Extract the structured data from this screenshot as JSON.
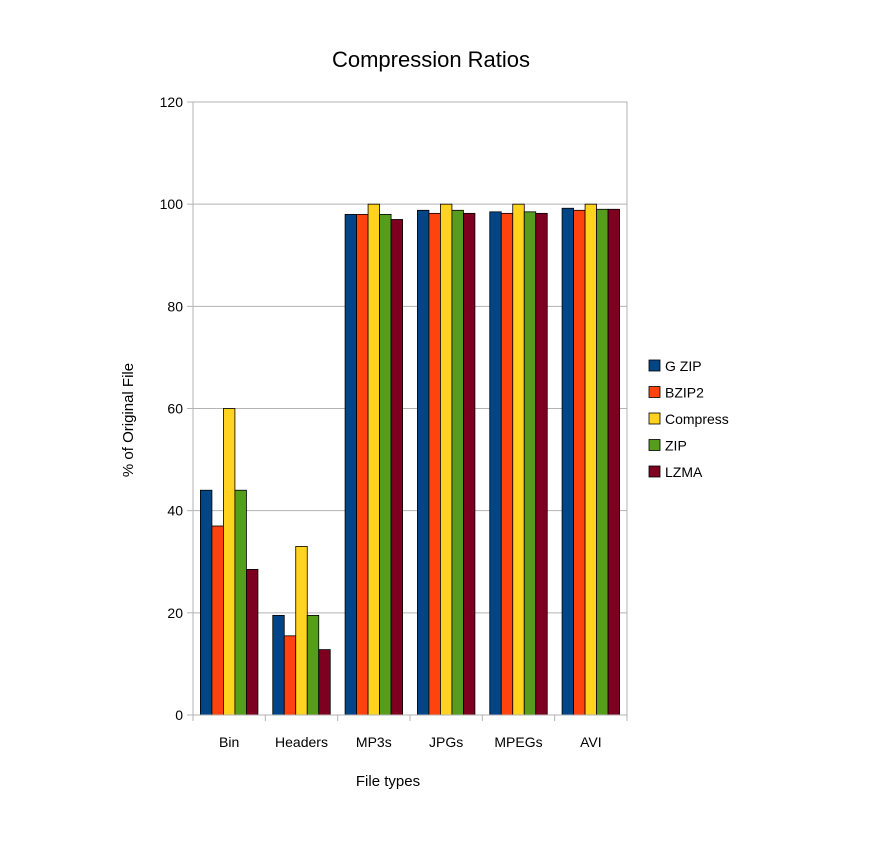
{
  "chart_data": {
    "type": "bar",
    "title": "Compression Ratios",
    "xlabel": "File types",
    "ylabel": "% of Original File",
    "categories": [
      "Bin",
      "Headers",
      "MP3s",
      "JPGs",
      "MPEGs",
      "AVI"
    ],
    "ylim": [
      0,
      120
    ],
    "yticks": [
      0,
      20,
      40,
      60,
      80,
      100,
      120
    ],
    "grid": true,
    "legend_position": "right",
    "series": [
      {
        "name": "G ZIP",
        "color": "#004586",
        "values": [
          44,
          19.5,
          98,
          98.8,
          98.5,
          99.2
        ]
      },
      {
        "name": "BZIP2",
        "color": "#ff420e",
        "values": [
          37,
          15.5,
          98,
          98.2,
          98.2,
          98.8
        ]
      },
      {
        "name": "Compress",
        "color": "#ffd320",
        "values": [
          60,
          33,
          100,
          100,
          100,
          100
        ]
      },
      {
        "name": "ZIP",
        "color": "#579d1c",
        "values": [
          44,
          19.5,
          98,
          98.8,
          98.5,
          99
        ]
      },
      {
        "name": "LZMA",
        "color": "#7e0021",
        "values": [
          28.5,
          12.8,
          97,
          98.2,
          98.2,
          99
        ]
      }
    ]
  }
}
